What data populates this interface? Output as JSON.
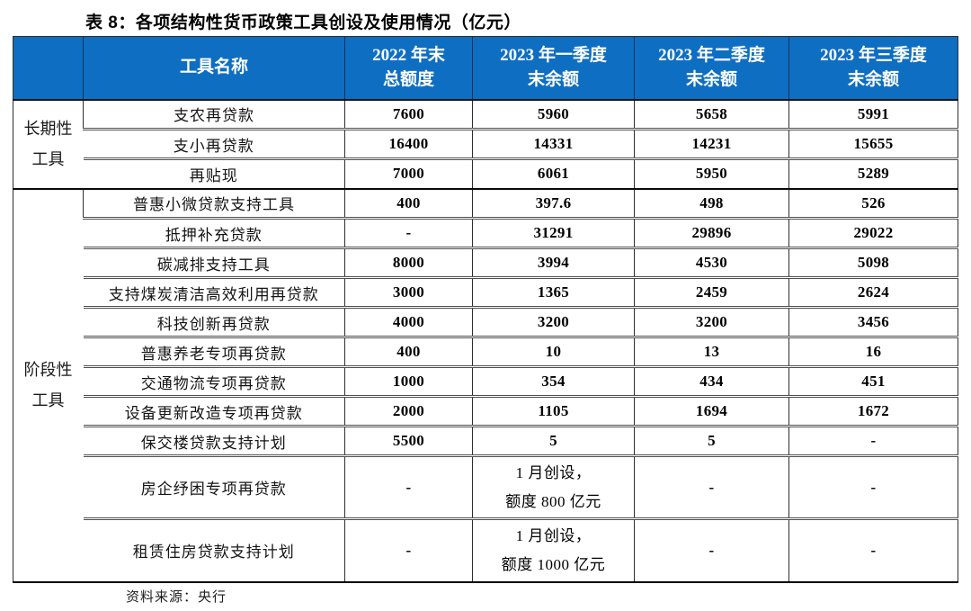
{
  "title": "表 8：各项结构性货币政策工具创设及使用情况（亿元）",
  "source": "资料来源：央行",
  "accent_color": "#0e6ec2",
  "table": {
    "header": {
      "group": "",
      "tool": "工具名称",
      "cols": [
        "2022 年末\n总额度",
        "2023 年一季度\n末余额",
        "2023 年二季度\n末余额",
        "2023 年三季度\n末余额"
      ]
    },
    "groups": [
      {
        "label": "长期性\n工具",
        "rows": [
          {
            "tool": "支农再贷款",
            "values": [
              "7600",
              "5960",
              "5658",
              "5991"
            ]
          },
          {
            "tool": "支小再贷款",
            "values": [
              "16400",
              "14331",
              "14231",
              "15655"
            ]
          },
          {
            "tool": "再贴现",
            "values": [
              "7000",
              "6061",
              "5950",
              "5289"
            ]
          }
        ]
      },
      {
        "label": "阶段性\n工具",
        "rows": [
          {
            "tool": "普惠小微贷款支持工具",
            "values": [
              "400",
              "397.6",
              "498",
              "526"
            ]
          },
          {
            "tool": "抵押补充贷款",
            "values": [
              "-",
              "31291",
              "29896",
              "29022"
            ]
          },
          {
            "tool": "碳减排支持工具",
            "values": [
              "8000",
              "3994",
              "4530",
              "5098"
            ]
          },
          {
            "tool": "支持煤炭清洁高效利用再贷款",
            "values": [
              "3000",
              "1365",
              "2459",
              "2624"
            ]
          },
          {
            "tool": "科技创新再贷款",
            "values": [
              "4000",
              "3200",
              "3200",
              "3456"
            ]
          },
          {
            "tool": "普惠养老专项再贷款",
            "values": [
              "400",
              "10",
              "13",
              "16"
            ]
          },
          {
            "tool": "交通物流专项再贷款",
            "values": [
              "1000",
              "354",
              "434",
              "451"
            ]
          },
          {
            "tool": "设备更新改造专项再贷款",
            "values": [
              "2000",
              "1105",
              "1694",
              "1672"
            ]
          },
          {
            "tool": "保交楼贷款支持计划",
            "values": [
              "5500",
              "5",
              "5",
              "-"
            ]
          },
          {
            "tool": "房企纾困专项再贷款",
            "values": [
              "-",
              "1 月创设，\n额度 800 亿元",
              "-",
              "-"
            ],
            "tall": true
          },
          {
            "tool": "租赁住房贷款支持计划",
            "values": [
              "-",
              "1 月创设，\n额度 1000 亿元",
              "-",
              "-"
            ],
            "tall": true
          }
        ]
      }
    ]
  }
}
